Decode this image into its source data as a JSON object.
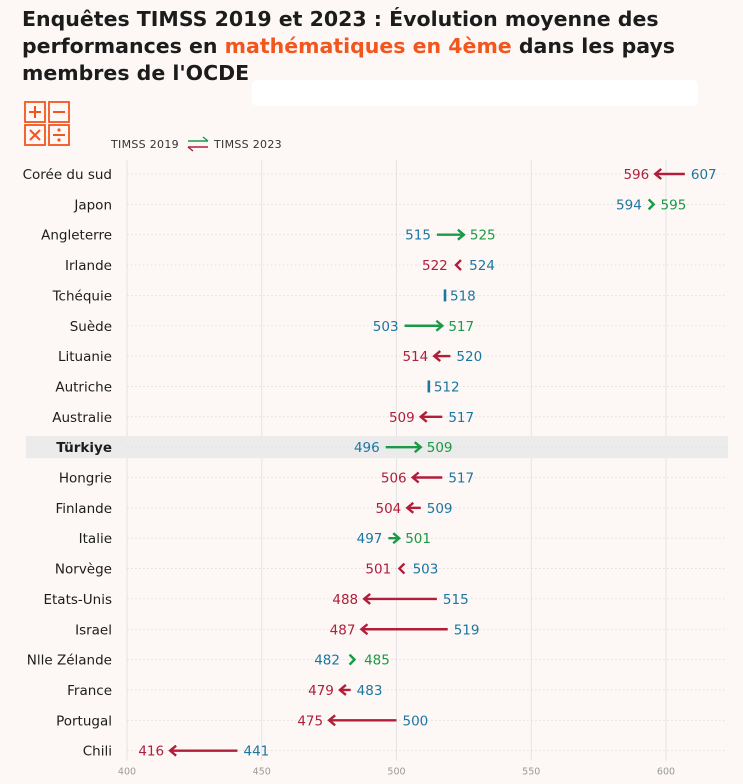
{
  "title": {
    "part1": "Enquêtes TIMSS 2019 et 2023 : Évolution moyenne des performances en ",
    "highlight": "mathématiques en 4ème",
    "part2": " dans les pays membres de l'OCDE"
  },
  "legend": {
    "from": "TIMSS 2019",
    "to": "TIMSS 2023"
  },
  "colors": {
    "decline": "#b01e3a",
    "improve": "#1a9a46",
    "baseline": "#1c76a0",
    "accent": "#f2551d",
    "highlight_row": "#ebebeb"
  },
  "logo_icon": "math-operators-icon",
  "chart_data": {
    "type": "dumbbell",
    "xlim": [
      400,
      625
    ],
    "xticks": [
      400,
      450,
      500,
      550,
      600
    ],
    "grid": true,
    "highlighted_category": "Türkiye",
    "series": [
      {
        "name": "TIMSS 2019"
      },
      {
        "name": "TIMSS 2023"
      }
    ],
    "categories": [
      "Corée du sud",
      "Japon",
      "Angleterre",
      "Irlande",
      "Tchéquie",
      "Suède",
      "Lituanie",
      "Autriche",
      "Australie",
      "Türkiye",
      "Hongrie",
      "Finlande",
      "Italie",
      "Norvège",
      "Etats-Unis",
      "Israel",
      "Nlle Zélande",
      "France",
      "Portugal",
      "Chili"
    ],
    "rows": [
      {
        "country": "Corée du sud",
        "y2019": 607,
        "y2023": 596
      },
      {
        "country": "Japon",
        "y2019": 594,
        "y2023": 595
      },
      {
        "country": "Angleterre",
        "y2019": 515,
        "y2023": 525
      },
      {
        "country": "Irlande",
        "y2019": 524,
        "y2023": 522
      },
      {
        "country": "Tchéquie",
        "y2019": 518,
        "y2023": null
      },
      {
        "country": "Suède",
        "y2019": 503,
        "y2023": 517
      },
      {
        "country": "Lituanie",
        "y2019": 520,
        "y2023": 514
      },
      {
        "country": "Autriche",
        "y2019": 512,
        "y2023": null
      },
      {
        "country": "Australie",
        "y2019": 517,
        "y2023": 509
      },
      {
        "country": "Türkiye",
        "y2019": 496,
        "y2023": 509
      },
      {
        "country": "Hongrie",
        "y2019": 517,
        "y2023": 506
      },
      {
        "country": "Finlande",
        "y2019": 509,
        "y2023": 504
      },
      {
        "country": "Italie",
        "y2019": 497,
        "y2023": 501
      },
      {
        "country": "Norvège",
        "y2019": 503,
        "y2023": 501
      },
      {
        "country": "Etats-Unis",
        "y2019": 515,
        "y2023": 488
      },
      {
        "country": "Israel",
        "y2019": 519,
        "y2023": 487
      },
      {
        "country": "Nlle Zélande",
        "y2019": 482,
        "y2023": 485
      },
      {
        "country": "France",
        "y2019": 483,
        "y2023": 479
      },
      {
        "country": "Portugal",
        "y2019": 500,
        "y2023": 475
      },
      {
        "country": "Chili",
        "y2019": 441,
        "y2023": 416
      }
    ]
  }
}
